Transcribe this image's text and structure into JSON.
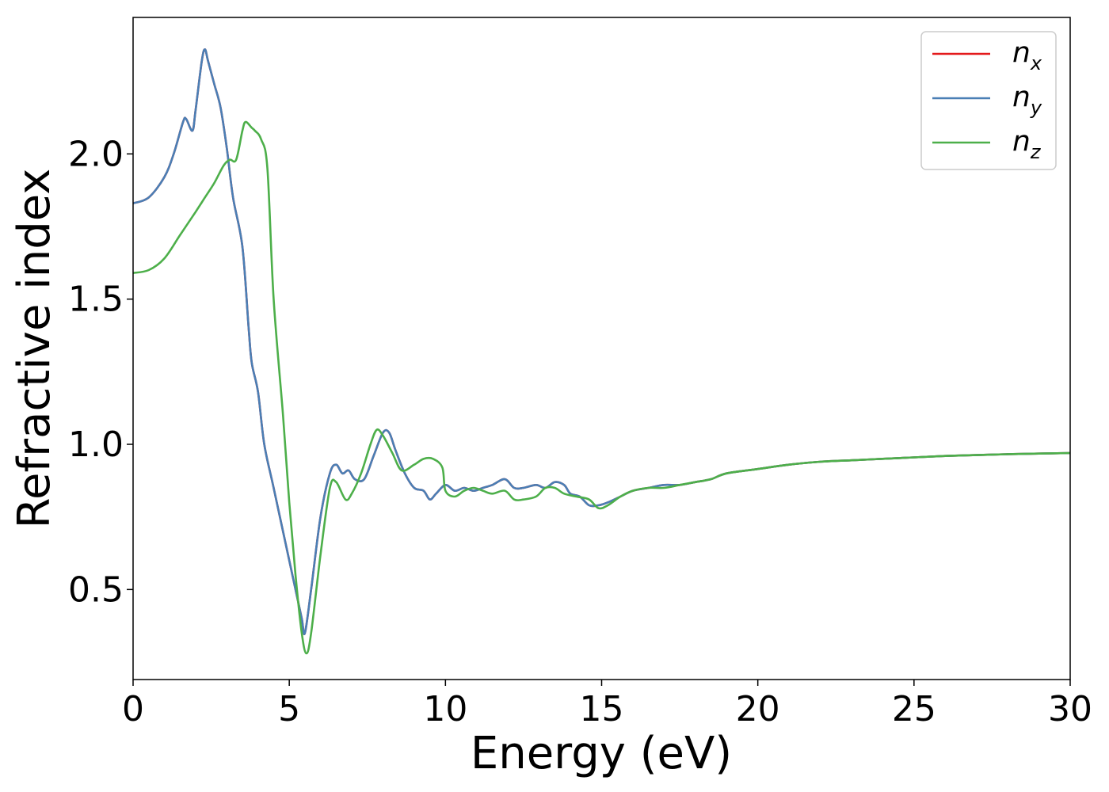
{
  "chart_data": {
    "type": "line",
    "title": "",
    "xlabel": "Energy (eV)",
    "ylabel": "Refractive index",
    "xlim": [
      0,
      30
    ],
    "ylim": [
      0.19,
      2.47
    ],
    "xticks": [
      0,
      5,
      10,
      15,
      20,
      25,
      30
    ],
    "xtick_labels": [
      "0",
      "5",
      "10",
      "15",
      "20",
      "25",
      "30"
    ],
    "yticks": [
      0.5,
      1.0,
      1.5,
      2.0
    ],
    "ytick_labels": [
      "0.5",
      "1.0",
      "1.5",
      "2.0"
    ],
    "grid": false,
    "legend_position": "top-right",
    "series": [
      {
        "name": "n_x",
        "label_base": "n",
        "label_sub": "x",
        "color": "#e41a1c",
        "x": [
          0,
          0.5,
          1.0,
          1.3,
          1.6,
          1.7,
          1.9,
          2.0,
          2.2,
          2.3,
          2.4,
          2.6,
          2.8,
          3.0,
          3.2,
          3.5,
          3.7,
          3.8,
          4.0,
          4.2,
          4.5,
          5.0,
          5.2,
          5.4,
          5.5,
          5.7,
          6.0,
          6.3,
          6.5,
          6.7,
          6.9,
          7.1,
          7.4,
          7.7,
          8.0,
          8.2,
          8.4,
          8.7,
          9.0,
          9.3,
          9.5,
          9.7,
          10.0,
          10.3,
          10.6,
          10.9,
          11.2,
          11.5,
          11.9,
          12.2,
          12.5,
          12.9,
          13.2,
          13.5,
          13.8,
          14.0,
          14.3,
          14.6,
          14.9,
          15.2,
          15.6,
          16.0,
          16.5,
          17.0,
          17.5,
          18.0,
          18.5,
          19.0,
          20.0,
          21.0,
          22.0,
          23.0,
          24.0,
          25.0,
          26.0,
          27.0,
          28.0,
          29.0,
          30.0
        ],
        "y": [
          1.83,
          1.85,
          1.92,
          2.0,
          2.11,
          2.12,
          2.08,
          2.15,
          2.32,
          2.36,
          2.32,
          2.24,
          2.16,
          2.02,
          1.85,
          1.68,
          1.4,
          1.28,
          1.18,
          1.0,
          0.85,
          0.6,
          0.5,
          0.4,
          0.35,
          0.5,
          0.75,
          0.9,
          0.93,
          0.9,
          0.91,
          0.88,
          0.88,
          0.96,
          1.04,
          1.04,
          0.98,
          0.9,
          0.85,
          0.84,
          0.81,
          0.83,
          0.86,
          0.84,
          0.85,
          0.84,
          0.85,
          0.86,
          0.88,
          0.85,
          0.85,
          0.86,
          0.85,
          0.87,
          0.86,
          0.83,
          0.82,
          0.79,
          0.79,
          0.8,
          0.82,
          0.84,
          0.85,
          0.86,
          0.86,
          0.87,
          0.88,
          0.9,
          0.915,
          0.93,
          0.94,
          0.945,
          0.95,
          0.955,
          0.96,
          0.963,
          0.966,
          0.968,
          0.97
        ]
      },
      {
        "name": "n_y",
        "label_base": "n",
        "label_sub": "y",
        "color": "#4a7fb5",
        "x": [
          0,
          0.5,
          1.0,
          1.3,
          1.6,
          1.7,
          1.9,
          2.0,
          2.2,
          2.3,
          2.4,
          2.6,
          2.8,
          3.0,
          3.2,
          3.5,
          3.7,
          3.8,
          4.0,
          4.2,
          4.5,
          5.0,
          5.2,
          5.4,
          5.5,
          5.7,
          6.0,
          6.3,
          6.5,
          6.7,
          6.9,
          7.1,
          7.4,
          7.7,
          8.0,
          8.2,
          8.4,
          8.7,
          9.0,
          9.3,
          9.5,
          9.7,
          10.0,
          10.3,
          10.6,
          10.9,
          11.2,
          11.5,
          11.9,
          12.2,
          12.5,
          12.9,
          13.2,
          13.5,
          13.8,
          14.0,
          14.3,
          14.6,
          14.9,
          15.2,
          15.6,
          16.0,
          16.5,
          17.0,
          17.5,
          18.0,
          18.5,
          19.0,
          20.0,
          21.0,
          22.0,
          23.0,
          24.0,
          25.0,
          26.0,
          27.0,
          28.0,
          29.0,
          30.0
        ],
        "y": [
          1.83,
          1.85,
          1.92,
          2.0,
          2.11,
          2.12,
          2.08,
          2.15,
          2.32,
          2.36,
          2.32,
          2.24,
          2.16,
          2.02,
          1.85,
          1.68,
          1.4,
          1.28,
          1.18,
          1.0,
          0.85,
          0.6,
          0.5,
          0.4,
          0.35,
          0.5,
          0.75,
          0.9,
          0.93,
          0.9,
          0.91,
          0.88,
          0.88,
          0.96,
          1.04,
          1.04,
          0.98,
          0.9,
          0.85,
          0.84,
          0.81,
          0.83,
          0.86,
          0.84,
          0.85,
          0.84,
          0.85,
          0.86,
          0.88,
          0.85,
          0.85,
          0.86,
          0.85,
          0.87,
          0.86,
          0.83,
          0.82,
          0.79,
          0.79,
          0.8,
          0.82,
          0.84,
          0.85,
          0.86,
          0.86,
          0.87,
          0.88,
          0.9,
          0.915,
          0.93,
          0.94,
          0.945,
          0.95,
          0.955,
          0.96,
          0.963,
          0.966,
          0.968,
          0.97
        ]
      },
      {
        "name": "n_z",
        "label_base": "n",
        "label_sub": "z",
        "color": "#4daf4a",
        "x": [
          0,
          0.5,
          1.0,
          1.5,
          2.0,
          2.3,
          2.6,
          2.9,
          3.1,
          3.3,
          3.5,
          3.6,
          3.8,
          3.9,
          4.1,
          4.3,
          4.5,
          4.8,
          5.0,
          5.2,
          5.4,
          5.55,
          5.7,
          6.0,
          6.3,
          6.5,
          6.8,
          7.0,
          7.3,
          7.6,
          7.8,
          8.0,
          8.3,
          8.6,
          9.0,
          9.3,
          9.6,
          9.9,
          10.0,
          10.3,
          10.6,
          10.9,
          11.2,
          11.5,
          11.9,
          12.2,
          12.5,
          12.9,
          13.2,
          13.5,
          13.8,
          14.2,
          14.6,
          14.9,
          15.2,
          15.6,
          16.0,
          16.5,
          17.0,
          17.5,
          18.0,
          18.5,
          19.0,
          20.0,
          21.0,
          22.0,
          23.0,
          24.0,
          25.0,
          26.0,
          27.0,
          28.0,
          29.0,
          30.0
        ],
        "y": [
          1.59,
          1.6,
          1.64,
          1.72,
          1.8,
          1.85,
          1.9,
          1.96,
          1.98,
          1.98,
          2.08,
          2.11,
          2.09,
          2.08,
          2.05,
          1.95,
          1.5,
          1.1,
          0.8,
          0.55,
          0.35,
          0.28,
          0.35,
          0.62,
          0.85,
          0.87,
          0.81,
          0.83,
          0.9,
          1.0,
          1.05,
          1.03,
          0.97,
          0.91,
          0.93,
          0.95,
          0.95,
          0.92,
          0.84,
          0.82,
          0.84,
          0.85,
          0.84,
          0.83,
          0.84,
          0.81,
          0.81,
          0.82,
          0.85,
          0.85,
          0.83,
          0.82,
          0.81,
          0.78,
          0.79,
          0.82,
          0.84,
          0.85,
          0.85,
          0.86,
          0.87,
          0.88,
          0.9,
          0.915,
          0.93,
          0.94,
          0.945,
          0.95,
          0.955,
          0.96,
          0.963,
          0.966,
          0.968,
          0.97
        ]
      }
    ]
  }
}
